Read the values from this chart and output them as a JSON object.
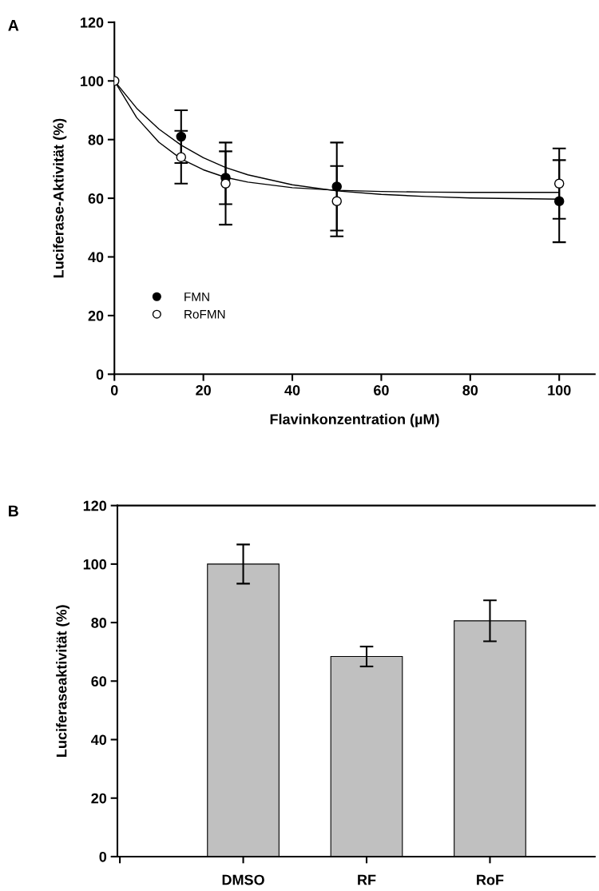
{
  "chart_data": [
    {
      "type": "scatter",
      "annotations": [
        "A"
      ],
      "xlabel": "Flavinkonzentration (µM)",
      "ylabel": "Luciferase-Aktivität (%)",
      "xlim": [
        0,
        108
      ],
      "xticks": [
        0,
        20,
        40,
        60,
        80,
        100
      ],
      "ylim": [
        0,
        120
      ],
      "yticks": [
        0,
        20,
        40,
        60,
        80,
        100,
        120
      ],
      "grid": false,
      "legend": "bottom left",
      "marker": "circle",
      "series": [
        {
          "name": "FMN",
          "color": "#000000",
          "x": [
            15,
            25,
            50,
            100
          ],
          "values": [
            81,
            67,
            64,
            59
          ],
          "errors": [
            9,
            9,
            15,
            14
          ]
        },
        {
          "name": "RoFMN",
          "color": "#ffffff",
          "x": [
            0,
            15,
            25,
            50,
            100
          ],
          "values": [
            100,
            74,
            65,
            59,
            65
          ],
          "errors": [
            null,
            9,
            14,
            12,
            12
          ]
        },
        {
          "type": "line",
          "color": "#000000",
          "marker": "none",
          "x": [
            0,
            5,
            10,
            15,
            20,
            25,
            30,
            40,
            50,
            60,
            70,
            80,
            90,
            100
          ],
          "values": [
            100,
            90.7,
            83.6,
            78.1,
            73.8,
            70.5,
            68.0,
            64.6,
            62.5,
            61.3,
            60.6,
            60.1,
            59.9,
            59.7
          ]
        },
        {
          "type": "line",
          "color": "#000000",
          "marker": "none",
          "x": [
            0,
            5,
            10,
            15,
            20,
            25,
            30,
            40,
            50,
            60,
            70,
            80,
            90,
            100
          ],
          "values": [
            100,
            87.5,
            79.1,
            73.4,
            69.7,
            67.1,
            65.5,
            63.6,
            62.7,
            62.3,
            62.1,
            62.0,
            62.0,
            62.0
          ]
        }
      ]
    },
    {
      "type": "bar",
      "annotations": [
        "B"
      ],
      "ylabel": "Luciferaseaktivität (%)",
      "categories": [
        null,
        "DMSO",
        "RF",
        "RoF"
      ],
      "values": [
        null,
        100,
        68.4,
        80.6
      ],
      "errors": [
        null,
        6.7,
        3.4,
        7
      ],
      "color": "#c0c0c0",
      "ylim": [
        0,
        120
      ],
      "yticks": [
        0,
        20,
        40,
        60,
        80,
        100,
        120
      ],
      "grid": false,
      "legend": false
    }
  ]
}
